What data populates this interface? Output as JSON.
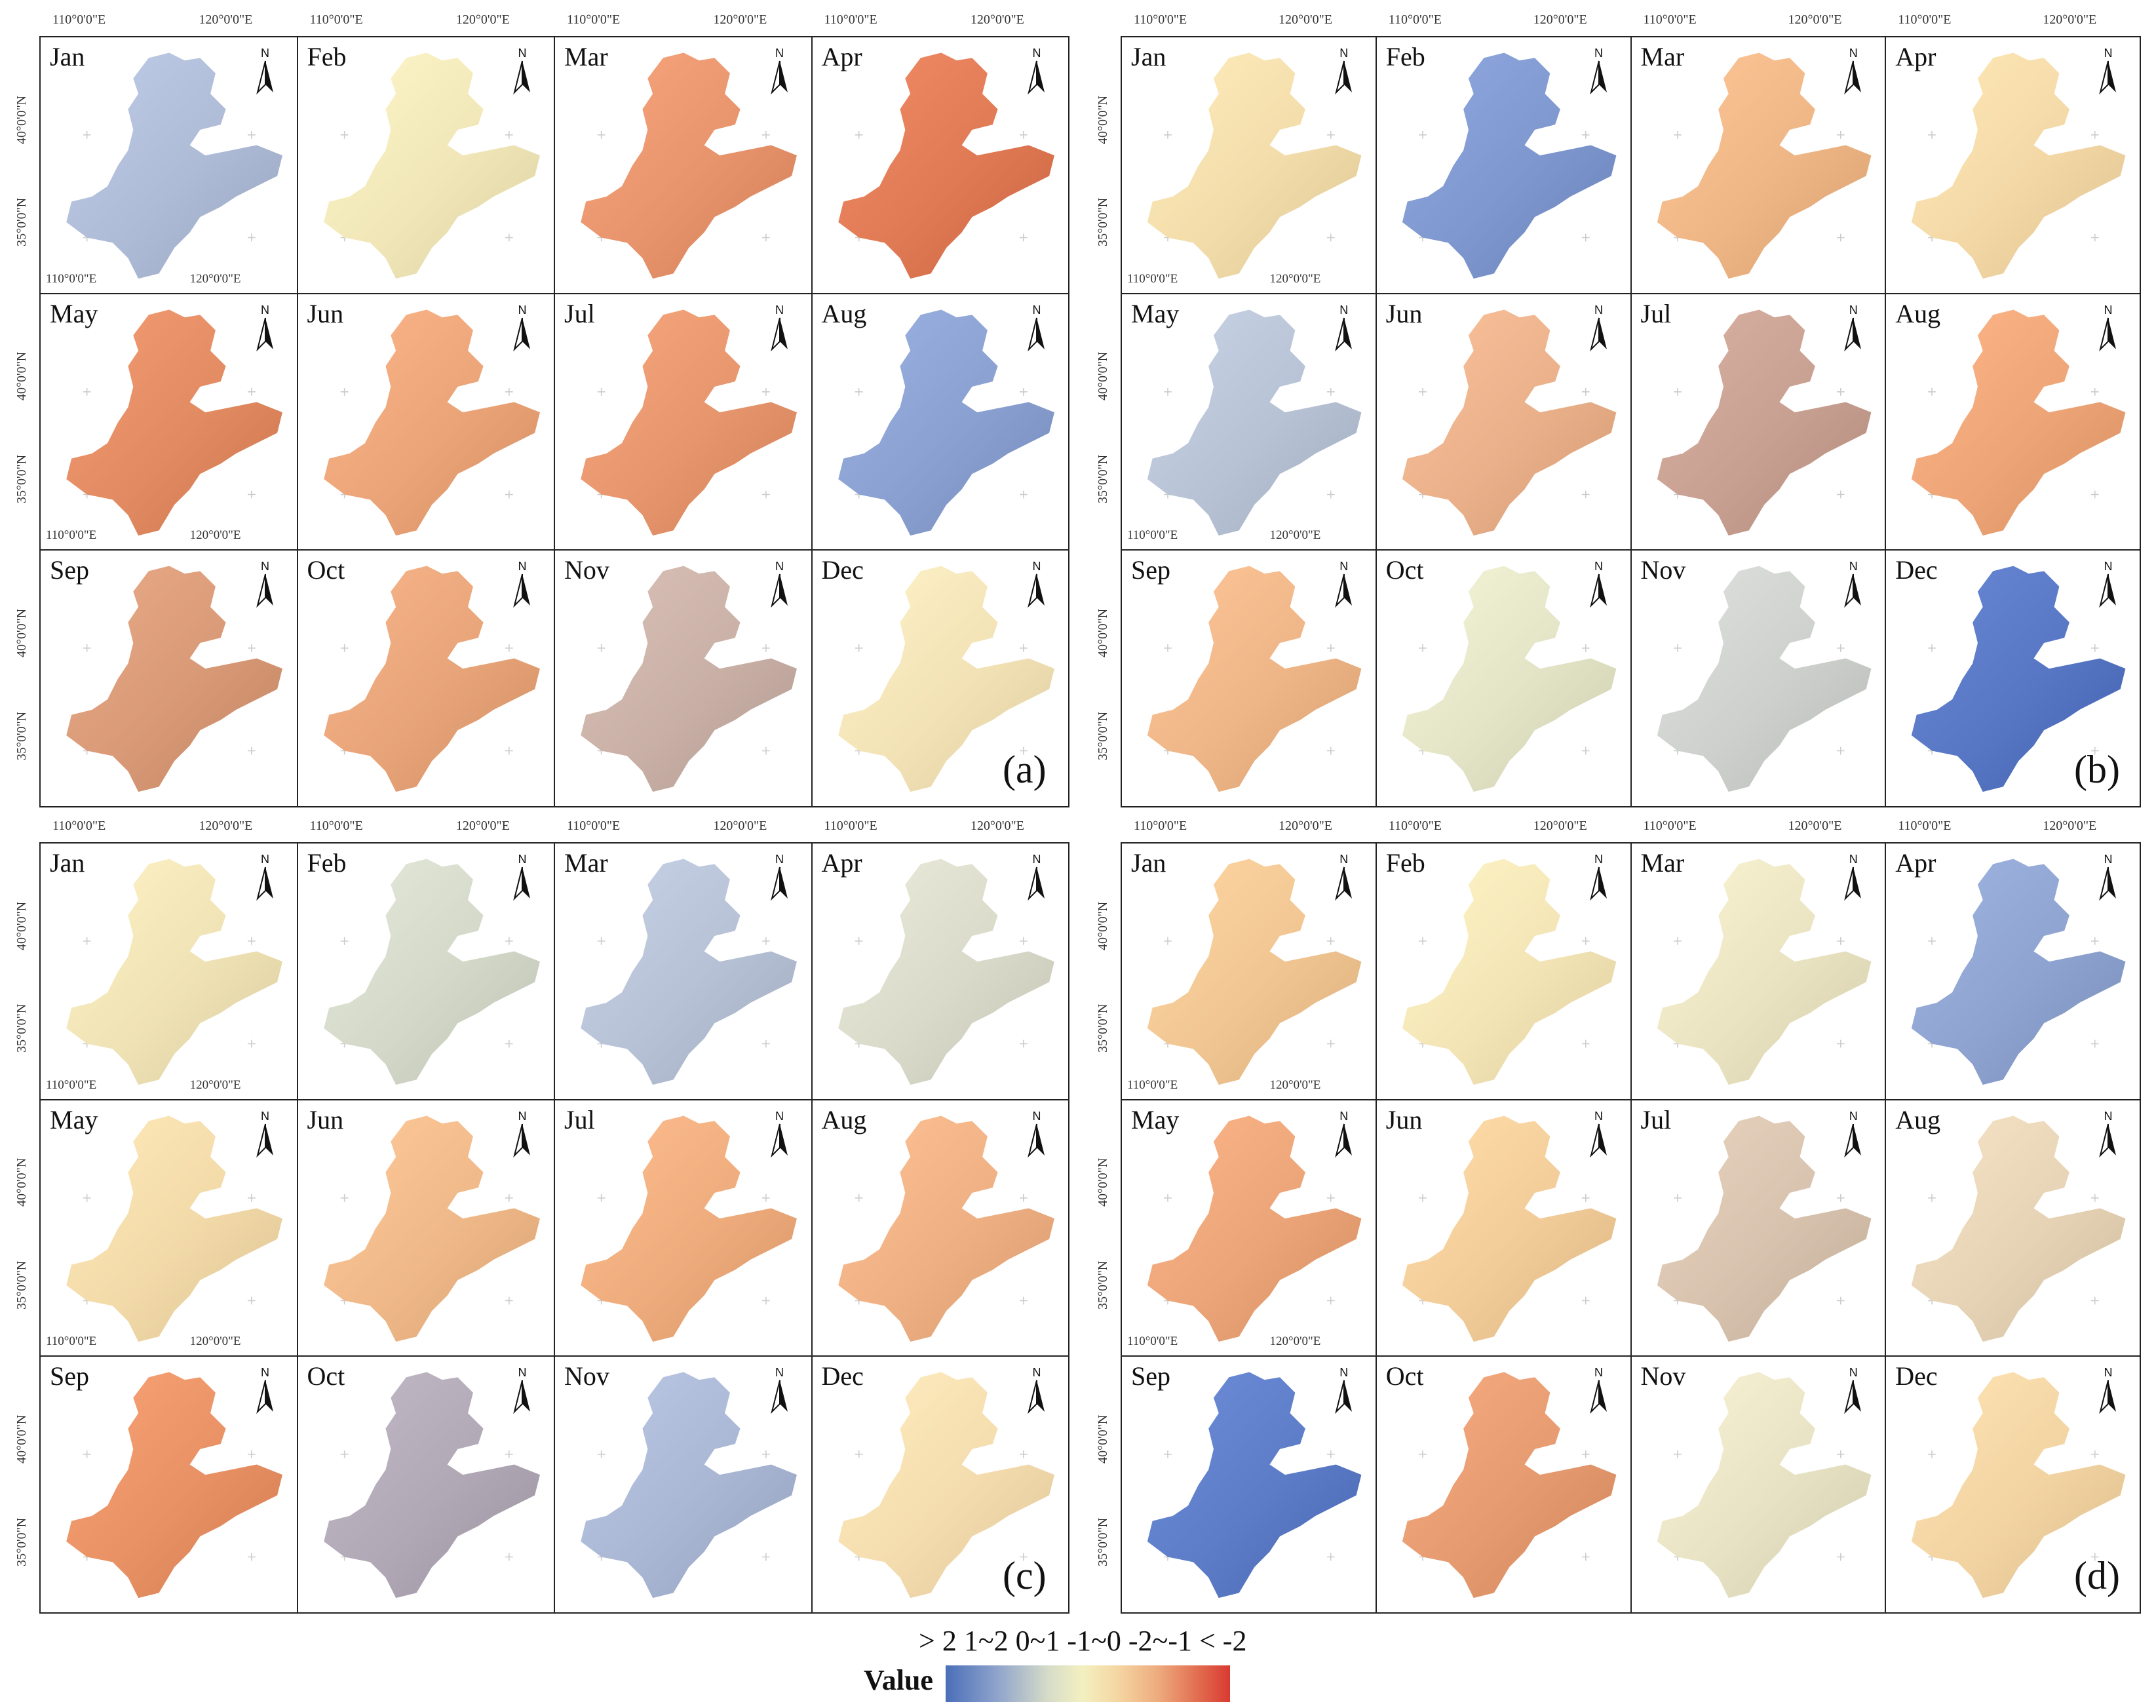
{
  "months": [
    "Jan",
    "Feb",
    "Mar",
    "Apr",
    "May",
    "Jun",
    "Jul",
    "Aug",
    "Sep",
    "Oct",
    "Nov",
    "Dec"
  ],
  "north_label": "N",
  "coord_labels": {
    "lon_110": "110°0'0\"E",
    "lon_120": "120°0'0\"E",
    "lat_40": "40°0'0\"N",
    "lat_35": "35°0'0\"N"
  },
  "panel_letters": [
    "(a)",
    "(b)",
    "(c)",
    "(d)"
  ],
  "legend": {
    "title": "Value",
    "class_labels": "> 2 1~2  0~1  -1~0  -2~-1  < -2",
    "colors": {
      "gt2": "#4a6fb8",
      "c1_2": "#8fa3cc",
      "c0_1": "#e8e8c4",
      "cm1_0": "#f5d7a4",
      "cm2_m1": "#e98a62",
      "lt_m2": "#d93a30"
    }
  },
  "palette": {
    "deep_blue": "#3c62c4",
    "blue": "#6f8ccd",
    "light_blue": "#aebbd6",
    "pale": "#f1eec3",
    "light_orange": "#f4d4a0",
    "orange": "#eca678",
    "red_orange": "#e07a55",
    "red": "#cf4a36"
  },
  "panels": [
    {
      "letter": "(a)",
      "colors": [
        "#aebbd6",
        "#f0e6b8",
        "#e7936b",
        "#e07a55",
        "#e28a61",
        "#eaa478",
        "#e6956c",
        "#8aa0d0",
        "#d89977",
        "#e8a479",
        "#c9b0a6",
        "#f2e2b6"
      ]
    },
    {
      "letter": "(b)",
      "colors": [
        "#f2dcaa",
        "#7f97cf",
        "#eeb585",
        "#f3d8a6",
        "#b7c2d5",
        "#e9b08a",
        "#c8a092",
        "#eda577",
        "#eeb587",
        "#e3e3c6",
        "#cdd0cc",
        "#5776c4"
      ]
    },
    {
      "letter": "(c)",
      "colors": [
        "#efe2b5",
        "#d4d8c9",
        "#b6c1d5",
        "#d9dac9",
        "#f2d9a8",
        "#efb888",
        "#eeac7d",
        "#eeb083",
        "#e89165",
        "#b1a8b6",
        "#a9b7d4",
        "#f4dcae"
      ]
    },
    {
      "letter": "(d)",
      "colors": [
        "#f0c591",
        "#f3e4b5",
        "#e9e3c1",
        "#8ea3d0",
        "#eba477",
        "#f2cc98",
        "#d7c2ae",
        "#e6d2b4",
        "#5d7cc7",
        "#e69a70",
        "#e7e2c3",
        "#f2d3a2"
      ]
    }
  ]
}
